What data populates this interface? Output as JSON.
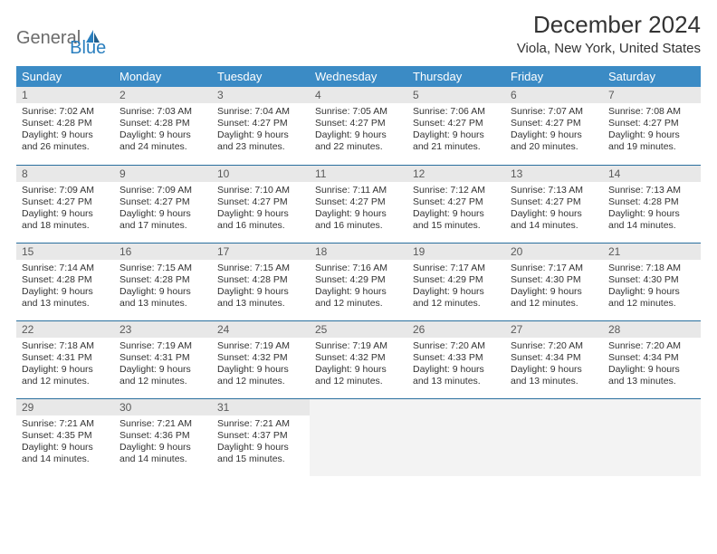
{
  "logo": {
    "part1": "General",
    "part2": "Blue"
  },
  "title": "December 2024",
  "location": "Viola, New York, United States",
  "colors": {
    "header_bg": "#3b8bc5",
    "header_text": "#ffffff",
    "daynum_bg": "#e8e8e8",
    "daynum_text": "#5a5a5a",
    "border": "#2a6f9e",
    "logo_gray": "#6b6b6b",
    "logo_blue": "#2a7fbf",
    "empty_bg": "#f3f3f3"
  },
  "weekdays": [
    "Sunday",
    "Monday",
    "Tuesday",
    "Wednesday",
    "Thursday",
    "Friday",
    "Saturday"
  ],
  "weeks": [
    [
      {
        "n": "1",
        "sr": "7:02 AM",
        "ss": "4:28 PM",
        "dl": "9 hours and 26 minutes."
      },
      {
        "n": "2",
        "sr": "7:03 AM",
        "ss": "4:28 PM",
        "dl": "9 hours and 24 minutes."
      },
      {
        "n": "3",
        "sr": "7:04 AM",
        "ss": "4:27 PM",
        "dl": "9 hours and 23 minutes."
      },
      {
        "n": "4",
        "sr": "7:05 AM",
        "ss": "4:27 PM",
        "dl": "9 hours and 22 minutes."
      },
      {
        "n": "5",
        "sr": "7:06 AM",
        "ss": "4:27 PM",
        "dl": "9 hours and 21 minutes."
      },
      {
        "n": "6",
        "sr": "7:07 AM",
        "ss": "4:27 PM",
        "dl": "9 hours and 20 minutes."
      },
      {
        "n": "7",
        "sr": "7:08 AM",
        "ss": "4:27 PM",
        "dl": "9 hours and 19 minutes."
      }
    ],
    [
      {
        "n": "8",
        "sr": "7:09 AM",
        "ss": "4:27 PM",
        "dl": "9 hours and 18 minutes."
      },
      {
        "n": "9",
        "sr": "7:09 AM",
        "ss": "4:27 PM",
        "dl": "9 hours and 17 minutes."
      },
      {
        "n": "10",
        "sr": "7:10 AM",
        "ss": "4:27 PM",
        "dl": "9 hours and 16 minutes."
      },
      {
        "n": "11",
        "sr": "7:11 AM",
        "ss": "4:27 PM",
        "dl": "9 hours and 16 minutes."
      },
      {
        "n": "12",
        "sr": "7:12 AM",
        "ss": "4:27 PM",
        "dl": "9 hours and 15 minutes."
      },
      {
        "n": "13",
        "sr": "7:13 AM",
        "ss": "4:27 PM",
        "dl": "9 hours and 14 minutes."
      },
      {
        "n": "14",
        "sr": "7:13 AM",
        "ss": "4:28 PM",
        "dl": "9 hours and 14 minutes."
      }
    ],
    [
      {
        "n": "15",
        "sr": "7:14 AM",
        "ss": "4:28 PM",
        "dl": "9 hours and 13 minutes."
      },
      {
        "n": "16",
        "sr": "7:15 AM",
        "ss": "4:28 PM",
        "dl": "9 hours and 13 minutes."
      },
      {
        "n": "17",
        "sr": "7:15 AM",
        "ss": "4:28 PM",
        "dl": "9 hours and 13 minutes."
      },
      {
        "n": "18",
        "sr": "7:16 AM",
        "ss": "4:29 PM",
        "dl": "9 hours and 12 minutes."
      },
      {
        "n": "19",
        "sr": "7:17 AM",
        "ss": "4:29 PM",
        "dl": "9 hours and 12 minutes."
      },
      {
        "n": "20",
        "sr": "7:17 AM",
        "ss": "4:30 PM",
        "dl": "9 hours and 12 minutes."
      },
      {
        "n": "21",
        "sr": "7:18 AM",
        "ss": "4:30 PM",
        "dl": "9 hours and 12 minutes."
      }
    ],
    [
      {
        "n": "22",
        "sr": "7:18 AM",
        "ss": "4:31 PM",
        "dl": "9 hours and 12 minutes."
      },
      {
        "n": "23",
        "sr": "7:19 AM",
        "ss": "4:31 PM",
        "dl": "9 hours and 12 minutes."
      },
      {
        "n": "24",
        "sr": "7:19 AM",
        "ss": "4:32 PM",
        "dl": "9 hours and 12 minutes."
      },
      {
        "n": "25",
        "sr": "7:19 AM",
        "ss": "4:32 PM",
        "dl": "9 hours and 12 minutes."
      },
      {
        "n": "26",
        "sr": "7:20 AM",
        "ss": "4:33 PM",
        "dl": "9 hours and 13 minutes."
      },
      {
        "n": "27",
        "sr": "7:20 AM",
        "ss": "4:34 PM",
        "dl": "9 hours and 13 minutes."
      },
      {
        "n": "28",
        "sr": "7:20 AM",
        "ss": "4:34 PM",
        "dl": "9 hours and 13 minutes."
      }
    ],
    [
      {
        "n": "29",
        "sr": "7:21 AM",
        "ss": "4:35 PM",
        "dl": "9 hours and 14 minutes."
      },
      {
        "n": "30",
        "sr": "7:21 AM",
        "ss": "4:36 PM",
        "dl": "9 hours and 14 minutes."
      },
      {
        "n": "31",
        "sr": "7:21 AM",
        "ss": "4:37 PM",
        "dl": "9 hours and 15 minutes."
      },
      null,
      null,
      null,
      null
    ]
  ],
  "labels": {
    "sunrise": "Sunrise:",
    "sunset": "Sunset:",
    "daylight": "Daylight:"
  }
}
